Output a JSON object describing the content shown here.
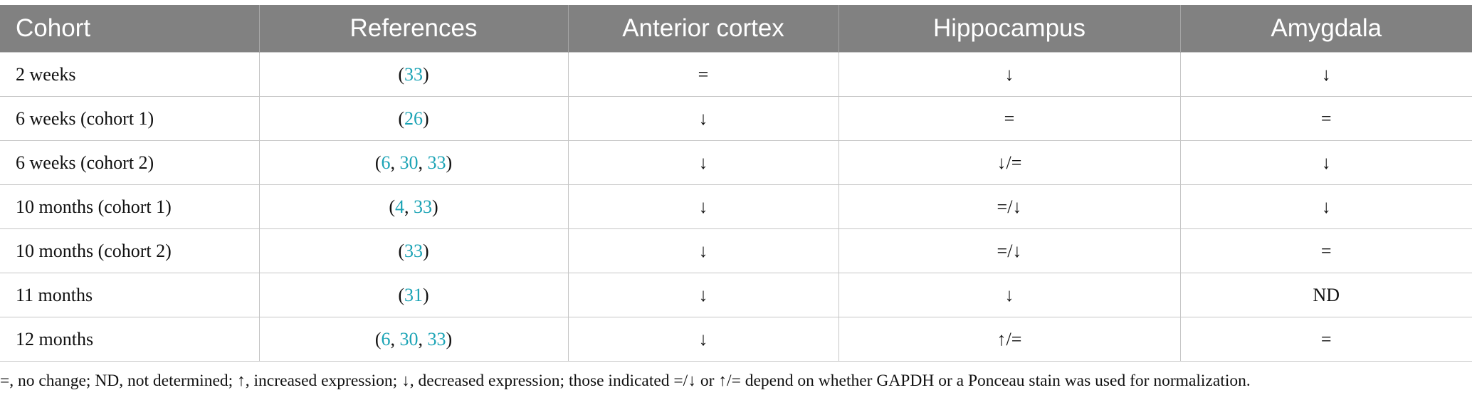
{
  "table": {
    "header": [
      "Cohort",
      "References",
      "Anterior cortex",
      "Hippocampus",
      "Amygdala"
    ],
    "rows": [
      {
        "cohort": "2 weeks",
        "references": [
          "(",
          "33",
          ")"
        ],
        "anterior": "=",
        "hippocampus": "↓",
        "amygdala": "↓"
      },
      {
        "cohort": "6 weeks (cohort 1)",
        "references": [
          "(",
          "26",
          ")"
        ],
        "anterior": "↓",
        "hippocampus": "=",
        "amygdala": "="
      },
      {
        "cohort": "6 weeks (cohort 2)",
        "references": [
          "(",
          "6",
          ", ",
          "30",
          ", ",
          "33",
          ")"
        ],
        "anterior": "↓",
        "hippocampus": "↓/=",
        "amygdala": "↓"
      },
      {
        "cohort": "10 months (cohort 1)",
        "references": [
          "(",
          "4",
          ", ",
          "33",
          ")"
        ],
        "anterior": "↓",
        "hippocampus": "=/↓",
        "amygdala": "↓"
      },
      {
        "cohort": "10 months (cohort 2)",
        "references": [
          "(",
          "33",
          ")"
        ],
        "anterior": "↓",
        "hippocampus": "=/↓",
        "amygdala": "="
      },
      {
        "cohort": "11 months",
        "references": [
          "(",
          "31",
          ")"
        ],
        "anterior": "↓",
        "hippocampus": "↓",
        "amygdala": "ND"
      },
      {
        "cohort": "12 months",
        "references": [
          "(",
          "6",
          ", ",
          "30",
          ", ",
          "33",
          ")"
        ],
        "anterior": "↓",
        "hippocampus": "↑/=",
        "amygdala": "="
      }
    ],
    "footnote": "=, no change; ND, not determined; ↑, increased expression; ↓, decreased expression; those indicated =/↓ or ↑/= depend on whether GAPDH or a Ponceau stain was used for normalization."
  }
}
